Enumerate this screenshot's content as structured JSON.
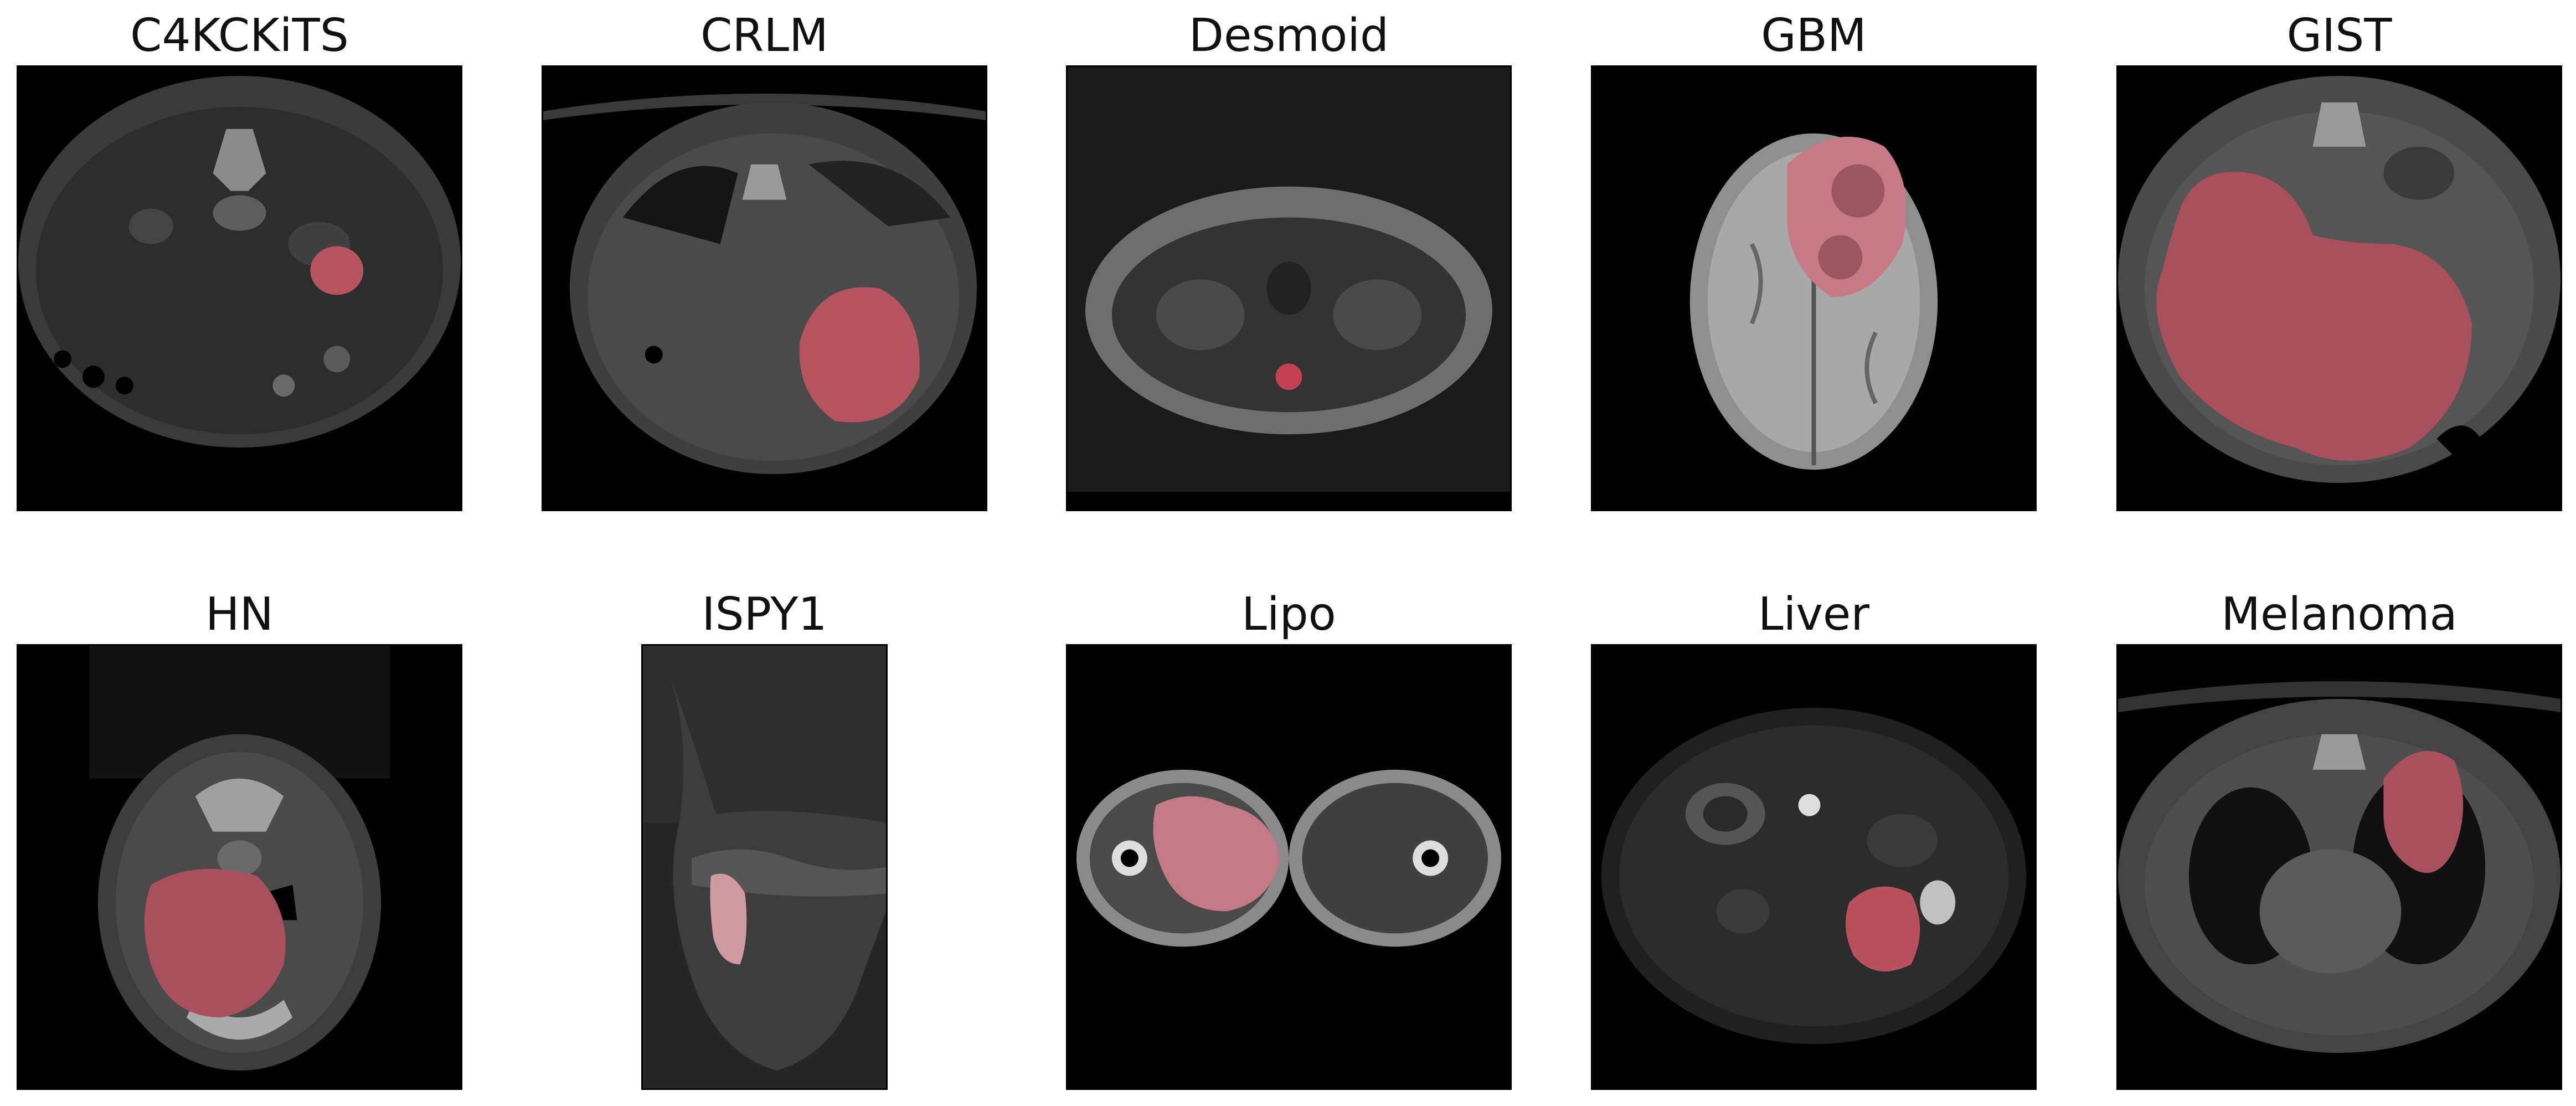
{
  "panels": [
    {
      "title": "C4KCKiTS",
      "modality": "ct-abdomen",
      "tumor_color": "#b5535f"
    },
    {
      "title": "CRLM",
      "modality": "ct-liver",
      "tumor_color": "#b5535f"
    },
    {
      "title": "Desmoid",
      "modality": "mri-abdomen",
      "tumor_color": "#c2404f"
    },
    {
      "title": "GBM",
      "modality": "mri-brain",
      "tumor_color": "#c77985"
    },
    {
      "title": "GIST",
      "modality": "ct-abdomen",
      "tumor_color": "#a9505c"
    },
    {
      "title": "HN",
      "modality": "ct-neck",
      "tumor_color": "#a9505c"
    },
    {
      "title": "ISPY1",
      "modality": "mri-breast",
      "tumor_color": "#d19aa3"
    },
    {
      "title": "Lipo",
      "modality": "mri-thigh",
      "tumor_color": "#c47a86"
    },
    {
      "title": "Liver",
      "modality": "mri-abdomen",
      "tumor_color": "#b8505d"
    },
    {
      "title": "Melanoma",
      "modality": "ct-chest",
      "tumor_color": "#a9505c"
    }
  ]
}
